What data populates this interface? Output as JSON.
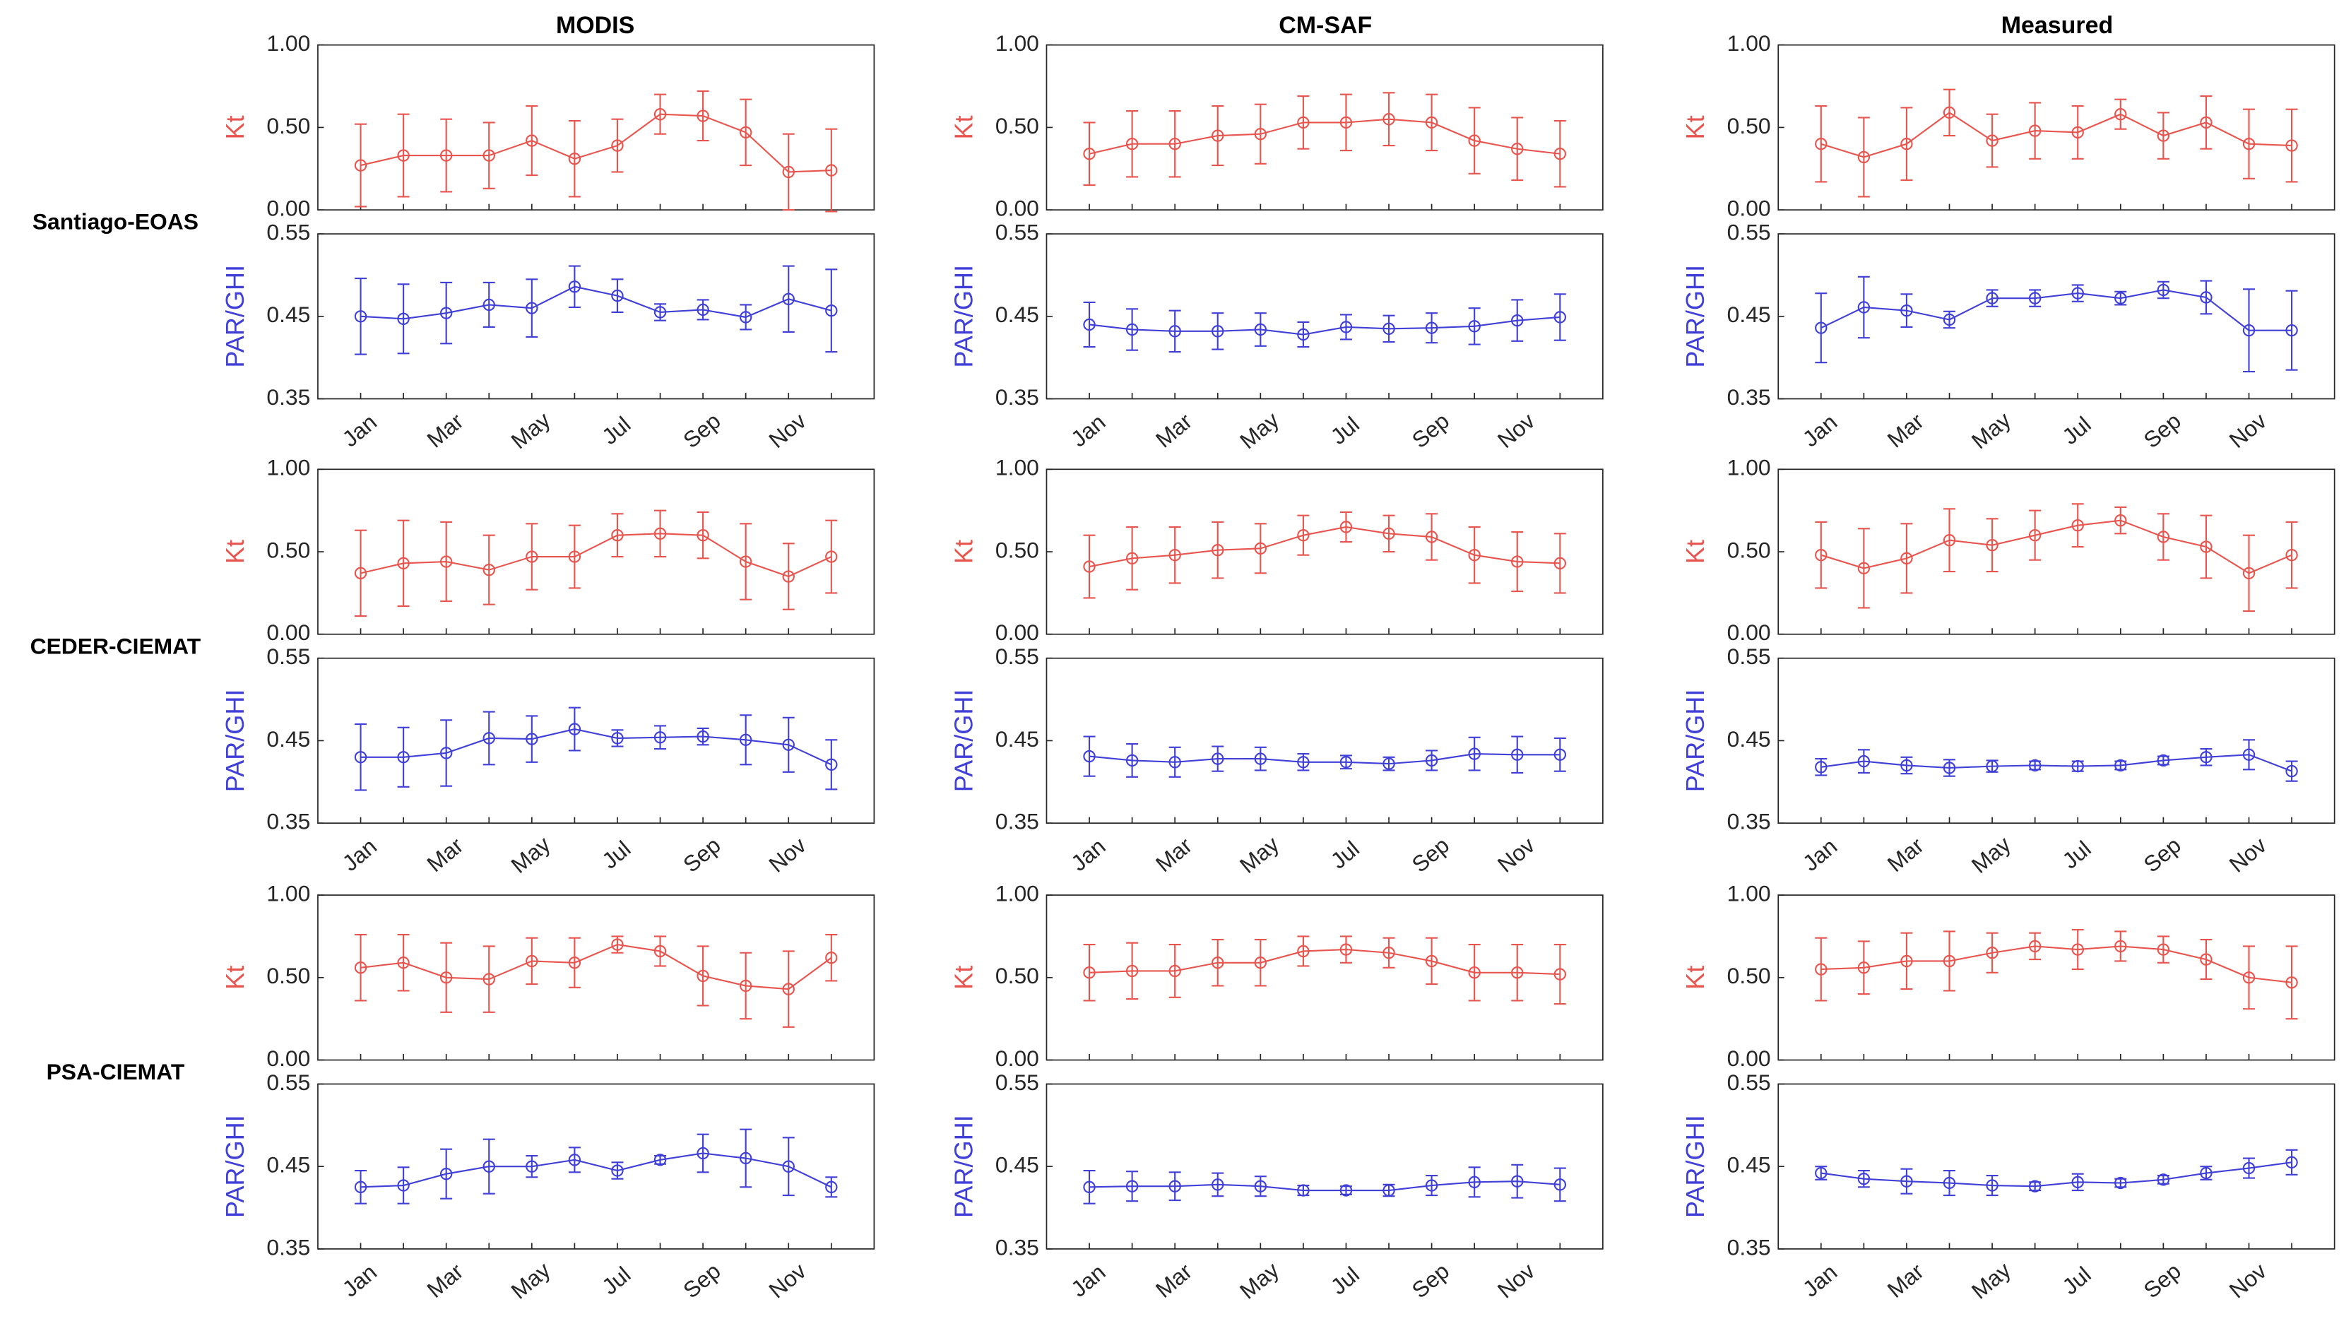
{
  "column_titles": [
    "MODIS",
    "CM-SAF",
    "Measured"
  ],
  "row_labels": [
    "Santiago-EOAS",
    "CEDER-CIEMAT",
    "PSA-CIEMAT"
  ],
  "chart_data": [
    {
      "type": "line",
      "ylabel": "Kt",
      "ylim": [
        0,
        1
      ],
      "yticks": [
        {
          "value": 0,
          "label": "0.00"
        },
        {
          "value": 0.5,
          "label": "0.50"
        },
        {
          "value": 1,
          "label": "1.00"
        }
      ],
      "series": [
        {
          "color": "#e8554e",
          "values": [
            0.27,
            0.33,
            0.33,
            0.33,
            0.42,
            0.31,
            0.39,
            0.58,
            0.57,
            0.47,
            0.23,
            0.24
          ],
          "errors": [
            0.25,
            0.25,
            0.22,
            0.2,
            0.21,
            0.23,
            0.16,
            0.12,
            0.15,
            0.2,
            0.23,
            0.25
          ]
        }
      ]
    },
    {
      "type": "line",
      "ylabel": "PAR/GHI",
      "ylim": [
        0.35,
        0.55
      ],
      "yticks": [
        0.35,
        0.45,
        0.55
      ],
      "categories": [
        "Jan",
        null,
        "Mar",
        null,
        "May",
        null,
        "Jul",
        null,
        "Sep",
        null,
        "Nov",
        null
      ],
      "series": [
        {
          "color": "#4040d8",
          "values": [
            0.45,
            0.447,
            0.454,
            0.464,
            0.46,
            0.486,
            0.475,
            0.455,
            0.458,
            0.449,
            0.471,
            0.457
          ],
          "errors": [
            0.046,
            0.042,
            0.037,
            0.027,
            0.035,
            0.025,
            0.02,
            0.01,
            0.012,
            0.015,
            0.04,
            0.05
          ]
        }
      ]
    },
    {
      "type": "line",
      "ylabel": "Kt",
      "ylim": [
        0,
        1
      ],
      "yticks": [
        {
          "value": 0,
          "label": "0.00"
        },
        {
          "value": 0.5,
          "label": "0.50"
        },
        {
          "value": 1,
          "label": "1.00"
        }
      ],
      "series": [
        {
          "color": "#e8554e",
          "values": [
            0.34,
            0.4,
            0.4,
            0.45,
            0.46,
            0.53,
            0.53,
            0.55,
            0.53,
            0.42,
            0.37,
            0.34
          ],
          "errors": [
            0.19,
            0.2,
            0.2,
            0.18,
            0.18,
            0.16,
            0.17,
            0.16,
            0.17,
            0.2,
            0.19,
            0.2
          ]
        }
      ]
    },
    {
      "type": "line",
      "ylabel": "PAR/GHI",
      "ylim": [
        0.35,
        0.55
      ],
      "yticks": [
        0.35,
        0.45,
        0.55
      ],
      "categories": [
        "Jan",
        null,
        "Mar",
        null,
        "May",
        null,
        "Jul",
        null,
        "Sep",
        null,
        "Nov",
        null
      ],
      "series": [
        {
          "color": "#4040d8",
          "values": [
            0.44,
            0.434,
            0.432,
            0.432,
            0.434,
            0.428,
            0.437,
            0.435,
            0.436,
            0.438,
            0.445,
            0.449
          ],
          "errors": [
            0.027,
            0.025,
            0.025,
            0.022,
            0.02,
            0.015,
            0.015,
            0.016,
            0.018,
            0.022,
            0.025,
            0.028
          ]
        }
      ]
    },
    {
      "type": "line",
      "ylabel": "Kt",
      "ylim": [
        0,
        1
      ],
      "yticks": [
        {
          "value": 0,
          "label": "0.00"
        },
        {
          "value": 0.5,
          "label": "0.50"
        },
        {
          "value": 1,
          "label": "1.00"
        }
      ],
      "series": [
        {
          "color": "#e8554e",
          "values": [
            0.4,
            0.32,
            0.4,
            0.59,
            0.42,
            0.48,
            0.47,
            0.58,
            0.45,
            0.53,
            0.4,
            0.39
          ],
          "errors": [
            0.23,
            0.24,
            0.22,
            0.14,
            0.16,
            0.17,
            0.16,
            0.09,
            0.14,
            0.16,
            0.21,
            0.22
          ]
        }
      ]
    },
    {
      "type": "line",
      "ylabel": "PAR/GHI",
      "ylim": [
        0.35,
        0.55
      ],
      "yticks": [
        0.35,
        0.45,
        0.55
      ],
      "categories": [
        "Jan",
        null,
        "Mar",
        null,
        "May",
        null,
        "Jul",
        null,
        "Sep",
        null,
        "Nov",
        null
      ],
      "series": [
        {
          "color": "#4040d8",
          "values": [
            0.436,
            0.461,
            0.457,
            0.446,
            0.472,
            0.472,
            0.478,
            0.472,
            0.482,
            0.473,
            0.433,
            0.433
          ],
          "errors": [
            0.042,
            0.037,
            0.02,
            0.01,
            0.01,
            0.01,
            0.01,
            0.008,
            0.01,
            0.02,
            0.05,
            0.048
          ]
        }
      ]
    },
    {
      "type": "line",
      "ylabel": "Kt",
      "ylim": [
        0,
        1
      ],
      "yticks": [
        {
          "value": 0,
          "label": "0.00"
        },
        {
          "value": 0.5,
          "label": "0.50"
        },
        {
          "value": 1,
          "label": "1.00"
        }
      ],
      "series": [
        {
          "color": "#e8554e",
          "values": [
            0.37,
            0.43,
            0.44,
            0.39,
            0.47,
            0.47,
            0.6,
            0.61,
            0.6,
            0.44,
            0.35,
            0.47
          ],
          "errors": [
            0.26,
            0.26,
            0.24,
            0.21,
            0.2,
            0.19,
            0.13,
            0.14,
            0.14,
            0.23,
            0.2,
            0.22
          ]
        }
      ]
    },
    {
      "type": "line",
      "ylabel": "PAR/GHI",
      "ylim": [
        0.35,
        0.55
      ],
      "yticks": [
        0.35,
        0.45,
        0.55
      ],
      "categories": [
        "Jan",
        null,
        "Mar",
        null,
        "May",
        null,
        "Jul",
        null,
        "Sep",
        null,
        "Nov",
        null
      ],
      "series": [
        {
          "color": "#4040d8",
          "values": [
            0.43,
            0.43,
            0.435,
            0.453,
            0.452,
            0.464,
            0.453,
            0.454,
            0.455,
            0.451,
            0.445,
            0.421
          ],
          "errors": [
            0.04,
            0.036,
            0.04,
            0.032,
            0.028,
            0.026,
            0.01,
            0.014,
            0.01,
            0.03,
            0.033,
            0.03
          ]
        }
      ]
    },
    {
      "type": "line",
      "ylabel": "Kt",
      "ylim": [
        0,
        1
      ],
      "yticks": [
        {
          "value": 0,
          "label": "0.00"
        },
        {
          "value": 0.5,
          "label": "0.50"
        },
        {
          "value": 1,
          "label": "1.00"
        }
      ],
      "series": [
        {
          "color": "#e8554e",
          "values": [
            0.41,
            0.46,
            0.48,
            0.51,
            0.52,
            0.6,
            0.65,
            0.61,
            0.59,
            0.48,
            0.44,
            0.43
          ],
          "errors": [
            0.19,
            0.19,
            0.17,
            0.17,
            0.15,
            0.12,
            0.09,
            0.11,
            0.14,
            0.17,
            0.18,
            0.18
          ]
        }
      ]
    },
    {
      "type": "line",
      "ylabel": "PAR/GHI",
      "ylim": [
        0.35,
        0.55
      ],
      "yticks": [
        0.35,
        0.45,
        0.55
      ],
      "categories": [
        "Jan",
        null,
        "Mar",
        null,
        "May",
        null,
        "Jul",
        null,
        "Sep",
        null,
        "Nov",
        null
      ],
      "series": [
        {
          "color": "#4040d8",
          "values": [
            0.431,
            0.426,
            0.424,
            0.428,
            0.428,
            0.424,
            0.424,
            0.422,
            0.426,
            0.434,
            0.433,
            0.433
          ],
          "errors": [
            0.024,
            0.02,
            0.018,
            0.015,
            0.014,
            0.01,
            0.008,
            0.008,
            0.012,
            0.02,
            0.022,
            0.02
          ]
        }
      ]
    },
    {
      "type": "line",
      "ylabel": "Kt",
      "ylim": [
        0,
        1
      ],
      "yticks": [
        {
          "value": 0,
          "label": "0.00"
        },
        {
          "value": 0.5,
          "label": "0.50"
        },
        {
          "value": 1,
          "label": "1.00"
        }
      ],
      "series": [
        {
          "color": "#e8554e",
          "values": [
            0.48,
            0.4,
            0.46,
            0.57,
            0.54,
            0.6,
            0.66,
            0.69,
            0.59,
            0.53,
            0.37,
            0.48
          ],
          "errors": [
            0.2,
            0.24,
            0.21,
            0.19,
            0.16,
            0.15,
            0.13,
            0.08,
            0.14,
            0.19,
            0.23,
            0.2
          ]
        }
      ]
    },
    {
      "type": "line",
      "ylabel": "PAR/GHI",
      "ylim": [
        0.35,
        0.55
      ],
      "yticks": [
        0.35,
        0.45,
        0.55
      ],
      "categories": [
        "Jan",
        null,
        "Mar",
        null,
        "May",
        null,
        "Jul",
        null,
        "Sep",
        null,
        "Nov",
        null
      ],
      "series": [
        {
          "color": "#4040d8",
          "values": [
            0.418,
            0.425,
            0.42,
            0.417,
            0.419,
            0.42,
            0.419,
            0.42,
            0.426,
            0.43,
            0.433,
            0.413
          ],
          "errors": [
            0.01,
            0.014,
            0.01,
            0.01,
            0.007,
            0.005,
            0.006,
            0.005,
            0.005,
            0.01,
            0.018,
            0.012
          ]
        }
      ]
    },
    {
      "type": "line",
      "ylabel": "Kt",
      "ylim": [
        0,
        1
      ],
      "yticks": [
        {
          "value": 0,
          "label": "0.00"
        },
        {
          "value": 0.5,
          "label": "0.50"
        },
        {
          "value": 1,
          "label": "1.00"
        }
      ],
      "series": [
        {
          "color": "#e8554e",
          "values": [
            0.56,
            0.59,
            0.5,
            0.49,
            0.6,
            0.59,
            0.7,
            0.66,
            0.51,
            0.45,
            0.43,
            0.62
          ],
          "errors": [
            0.2,
            0.17,
            0.21,
            0.2,
            0.14,
            0.15,
            0.05,
            0.09,
            0.18,
            0.2,
            0.23,
            0.14
          ]
        }
      ]
    },
    {
      "type": "line",
      "ylabel": "PAR/GHI",
      "ylim": [
        0.35,
        0.55
      ],
      "yticks": [
        0.35,
        0.45,
        0.55
      ],
      "categories": [
        "Jan",
        null,
        "Mar",
        null,
        "May",
        null,
        "Jul",
        null,
        "Sep",
        null,
        "Nov",
        null
      ],
      "series": [
        {
          "color": "#4040d8",
          "values": [
            0.425,
            0.427,
            0.441,
            0.45,
            0.45,
            0.458,
            0.445,
            0.458,
            0.466,
            0.46,
            0.45,
            0.425
          ],
          "errors": [
            0.02,
            0.022,
            0.03,
            0.033,
            0.013,
            0.015,
            0.01,
            0.005,
            0.023,
            0.035,
            0.035,
            0.012
          ]
        }
      ]
    },
    {
      "type": "line",
      "ylabel": "Kt",
      "ylim": [
        0,
        1
      ],
      "yticks": [
        {
          "value": 0,
          "label": "0.00"
        },
        {
          "value": 0.5,
          "label": "0.50"
        },
        {
          "value": 1,
          "label": "1.00"
        }
      ],
      "series": [
        {
          "color": "#e8554e",
          "values": [
            0.53,
            0.54,
            0.54,
            0.59,
            0.59,
            0.66,
            0.67,
            0.65,
            0.6,
            0.53,
            0.53,
            0.52
          ],
          "errors": [
            0.17,
            0.17,
            0.16,
            0.14,
            0.14,
            0.09,
            0.08,
            0.09,
            0.14,
            0.17,
            0.17,
            0.18
          ]
        }
      ]
    },
    {
      "type": "line",
      "ylabel": "PAR/GHI",
      "ylim": [
        0.35,
        0.55
      ],
      "yticks": [
        0.35,
        0.45,
        0.55
      ],
      "categories": [
        "Jan",
        null,
        "Mar",
        null,
        "May",
        null,
        "Jul",
        null,
        "Sep",
        null,
        "Nov",
        null
      ],
      "series": [
        {
          "color": "#4040d8",
          "values": [
            0.425,
            0.426,
            0.426,
            0.428,
            0.426,
            0.421,
            0.421,
            0.421,
            0.427,
            0.431,
            0.432,
            0.428
          ],
          "errors": [
            0.02,
            0.018,
            0.017,
            0.014,
            0.012,
            0.006,
            0.005,
            0.007,
            0.012,
            0.018,
            0.02,
            0.02
          ]
        }
      ]
    },
    {
      "type": "line",
      "ylabel": "Kt",
      "ylim": [
        0,
        1
      ],
      "yticks": [
        {
          "value": 0,
          "label": "0.00"
        },
        {
          "value": 0.5,
          "label": "0.50"
        },
        {
          "value": 1,
          "label": "1.00"
        }
      ],
      "series": [
        {
          "color": "#e8554e",
          "values": [
            0.55,
            0.56,
            0.6,
            0.6,
            0.65,
            0.69,
            0.67,
            0.69,
            0.67,
            0.61,
            0.5,
            0.47
          ],
          "errors": [
            0.19,
            0.16,
            0.17,
            0.18,
            0.12,
            0.08,
            0.12,
            0.09,
            0.08,
            0.12,
            0.19,
            0.22
          ]
        }
      ]
    },
    {
      "type": "line",
      "ylabel": "PAR/GHI",
      "ylim": [
        0.35,
        0.55
      ],
      "yticks": [
        0.35,
        0.45,
        0.55
      ],
      "categories": [
        "Jan",
        null,
        "Mar",
        null,
        "May",
        null,
        "Jul",
        null,
        "Sep",
        null,
        "Nov",
        null
      ],
      "series": [
        {
          "color": "#4040d8",
          "values": [
            0.442,
            0.435,
            0.432,
            0.43,
            0.427,
            0.426,
            0.431,
            0.43,
            0.434,
            0.442,
            0.448,
            0.455
          ],
          "errors": [
            0.008,
            0.01,
            0.015,
            0.015,
            0.012,
            0.005,
            0.01,
            0.005,
            0.005,
            0.008,
            0.012,
            0.015
          ]
        }
      ]
    }
  ]
}
